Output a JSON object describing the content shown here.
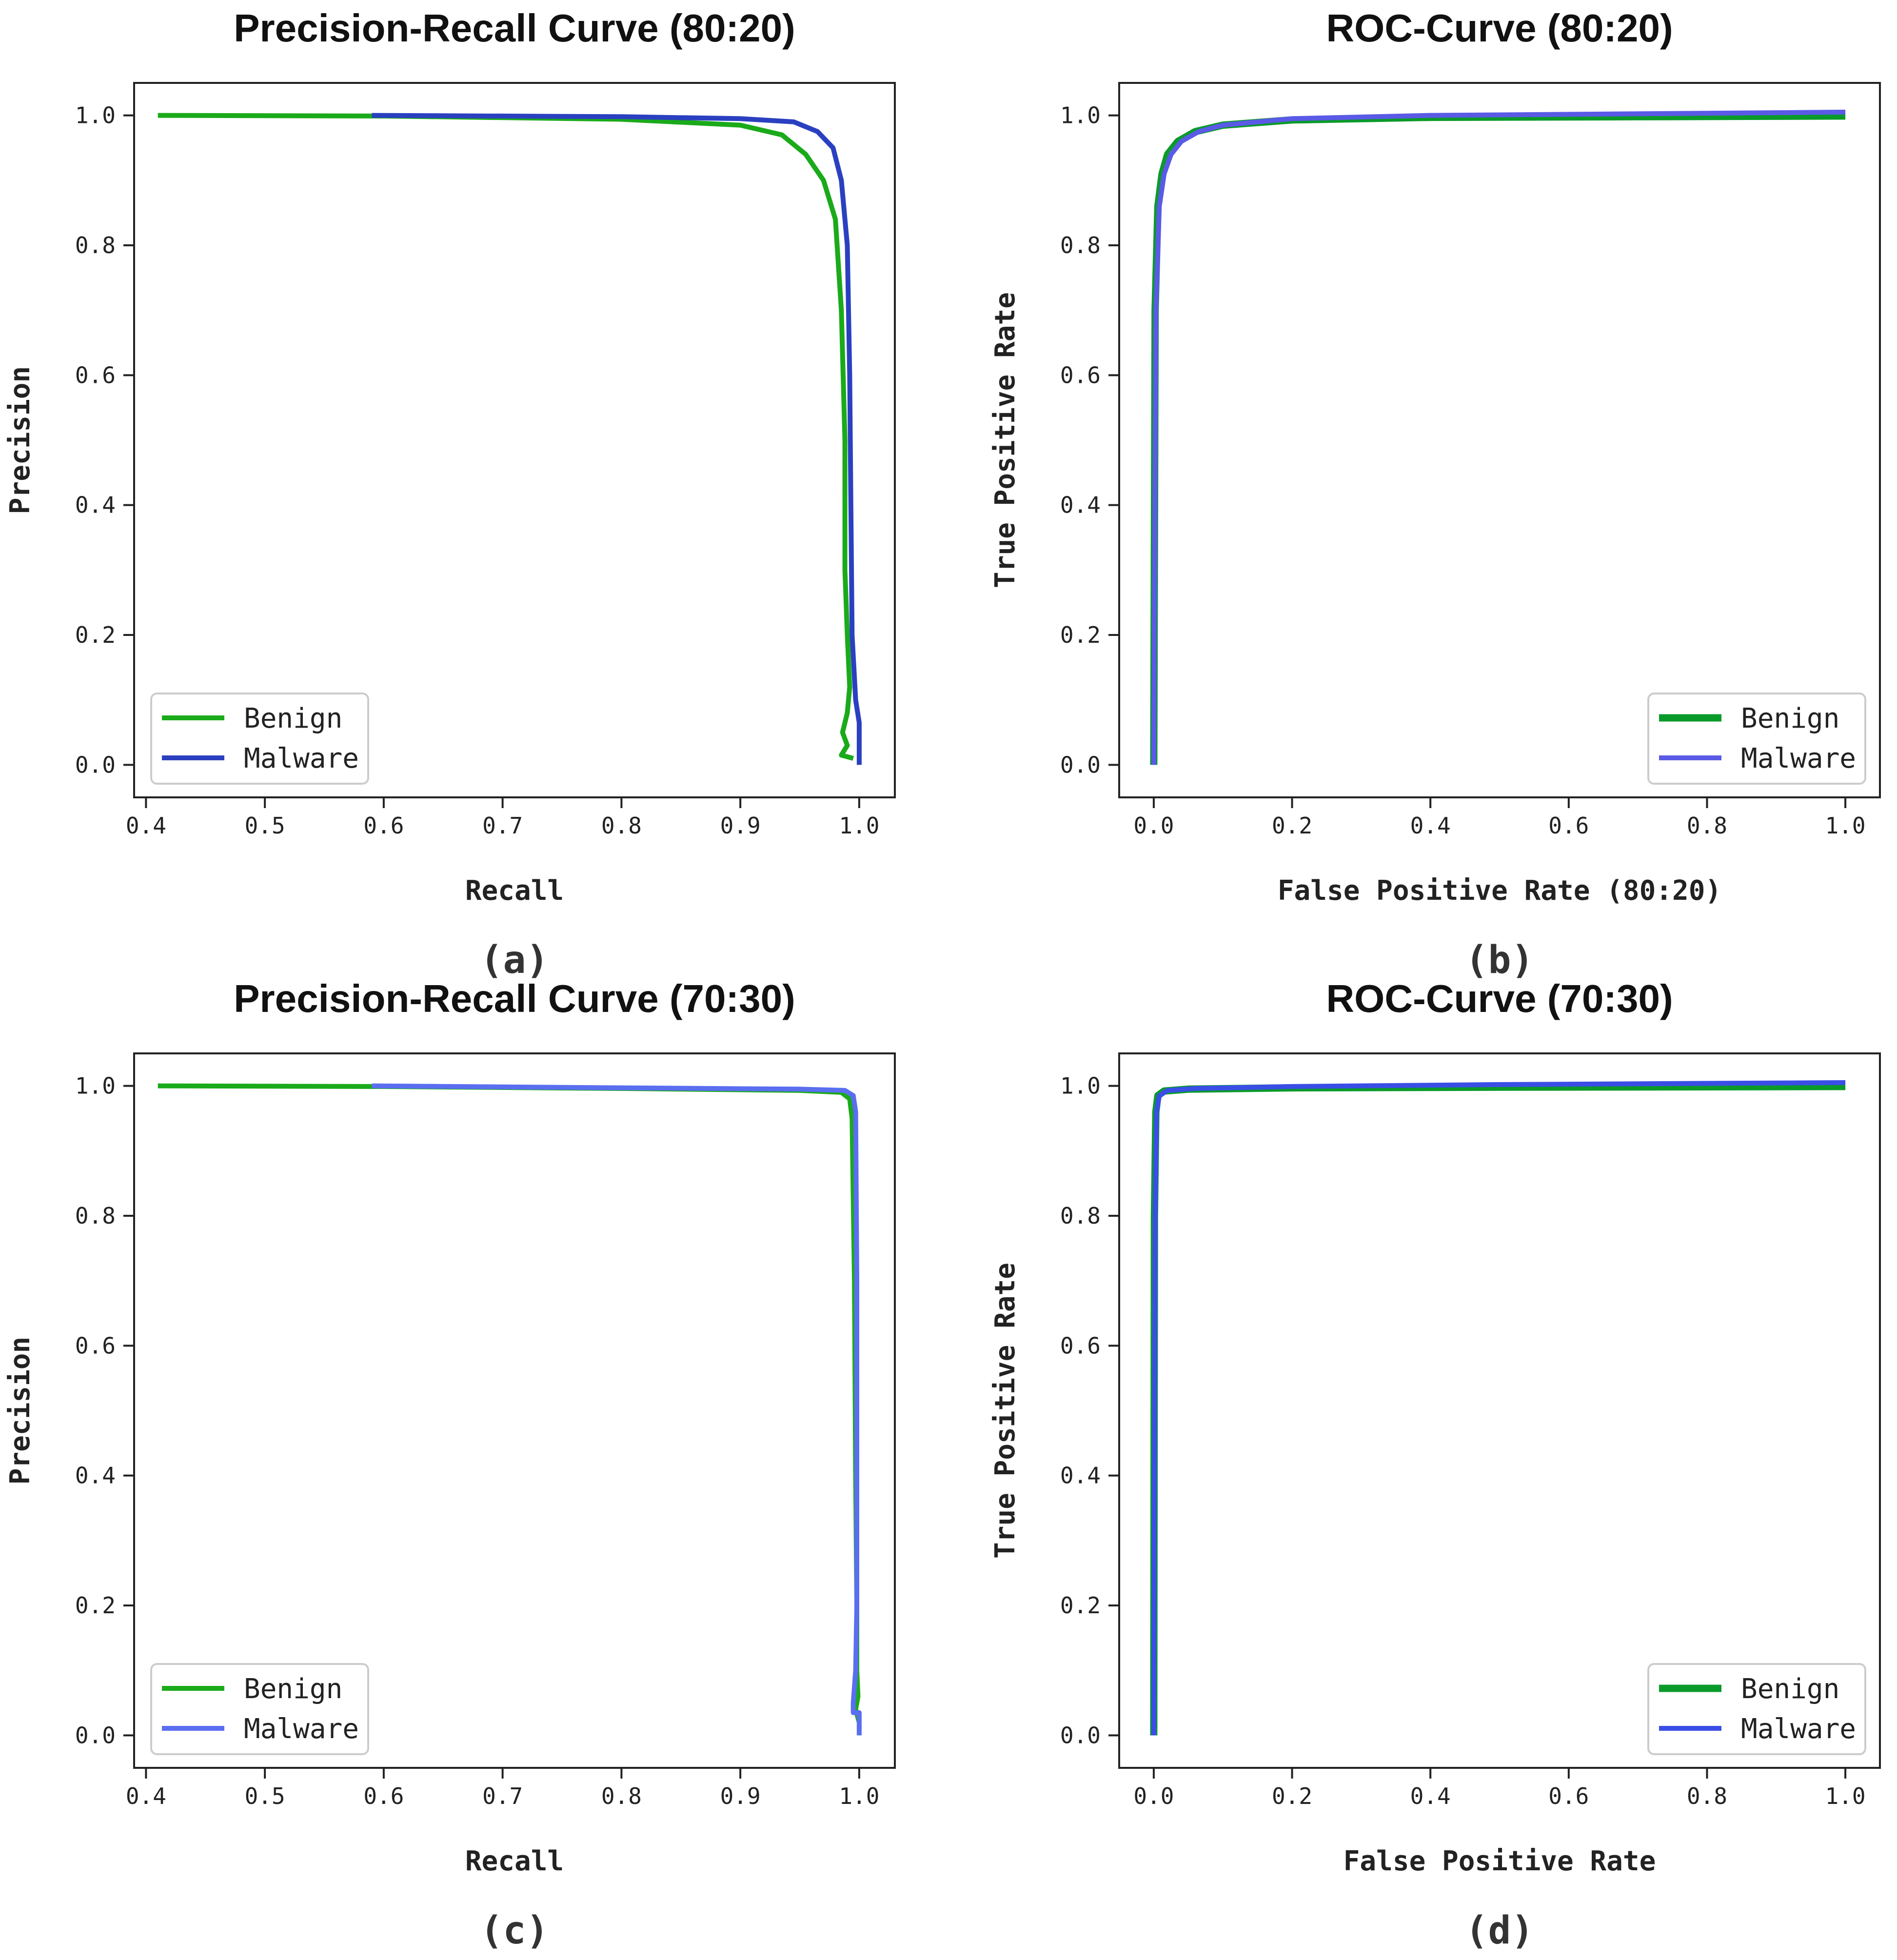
{
  "chart_data": [
    {
      "type": "line",
      "title": "Precision-Recall Curve (80:20)",
      "caption": "(a)",
      "xlabel": "Recall",
      "ylabel": "Precision",
      "xlim": [
        0.39,
        1.03
      ],
      "ylim": [
        -0.05,
        1.05
      ],
      "xticks": [
        0.4,
        0.5,
        0.6,
        0.7,
        0.8,
        0.9,
        1.0
      ],
      "xtick_labels": [
        "0.4",
        "0.5",
        "0.6",
        "0.7",
        "0.8",
        "0.9",
        "1.0"
      ],
      "yticks": [
        0.0,
        0.2,
        0.4,
        0.6,
        0.8,
        1.0
      ],
      "ytick_labels": [
        "0.0",
        "0.2",
        "0.4",
        "0.6",
        "0.8",
        "1.0"
      ],
      "grid": false,
      "legend": {
        "position": "bottom-left"
      },
      "series": [
        {
          "name": "Benign",
          "color": "#1aaa1a",
          "points": [
            [
              0.41,
              1.0
            ],
            [
              0.6,
              0.999
            ],
            [
              0.8,
              0.994
            ],
            [
              0.9,
              0.985
            ],
            [
              0.935,
              0.97
            ],
            [
              0.955,
              0.94
            ],
            [
              0.97,
              0.9
            ],
            [
              0.98,
              0.84
            ],
            [
              0.985,
              0.7
            ],
            [
              0.988,
              0.5
            ],
            [
              0.988,
              0.3
            ],
            [
              0.99,
              0.2
            ],
            [
              0.992,
              0.12
            ],
            [
              0.99,
              0.08
            ],
            [
              0.986,
              0.05
            ],
            [
              0.99,
              0.03
            ],
            [
              0.985,
              0.015
            ],
            [
              0.995,
              0.01
            ]
          ]
        },
        {
          "name": "Malware",
          "color": "#2a40c0",
          "points": [
            [
              0.59,
              1.0
            ],
            [
              0.8,
              0.998
            ],
            [
              0.9,
              0.995
            ],
            [
              0.945,
              0.99
            ],
            [
              0.965,
              0.975
            ],
            [
              0.978,
              0.95
            ],
            [
              0.985,
              0.9
            ],
            [
              0.99,
              0.8
            ],
            [
              0.992,
              0.6
            ],
            [
              0.993,
              0.4
            ],
            [
              0.994,
              0.2
            ],
            [
              0.997,
              0.1
            ],
            [
              1.0,
              0.065
            ],
            [
              1.0,
              0.0
            ]
          ]
        }
      ]
    },
    {
      "type": "line",
      "title": "ROC-Curve (80:20)",
      "caption": "(b)",
      "xlabel": "False Positive Rate (80:20)",
      "ylabel": "True Positive Rate",
      "xlim": [
        -0.05,
        1.05
      ],
      "ylim": [
        -0.05,
        1.05
      ],
      "xticks": [
        0.0,
        0.2,
        0.4,
        0.6,
        0.8,
        1.0
      ],
      "xtick_labels": [
        "0.0",
        "0.2",
        "0.4",
        "0.6",
        "0.8",
        "1.0"
      ],
      "yticks": [
        0.0,
        0.2,
        0.4,
        0.6,
        0.8,
        1.0
      ],
      "ytick_labels": [
        "0.0",
        "0.2",
        "0.4",
        "0.6",
        "0.8",
        "1.0"
      ],
      "grid": false,
      "legend": {
        "position": "bottom-right"
      },
      "series": [
        {
          "name": "Benign",
          "color": "#0a9a2a",
          "points": [
            [
              0.0,
              0.0
            ],
            [
              0.002,
              0.7
            ],
            [
              0.006,
              0.86
            ],
            [
              0.012,
              0.91
            ],
            [
              0.02,
              0.94
            ],
            [
              0.035,
              0.96
            ],
            [
              0.06,
              0.975
            ],
            [
              0.1,
              0.985
            ],
            [
              0.2,
              0.993
            ],
            [
              0.4,
              0.997
            ],
            [
              0.7,
              0.998
            ],
            [
              1.0,
              0.999
            ]
          ]
        },
        {
          "name": "Malware",
          "color": "#5a5ae6",
          "points": [
            [
              0.0,
              0.0
            ],
            [
              0.003,
              0.7
            ],
            [
              0.008,
              0.86
            ],
            [
              0.015,
              0.91
            ],
            [
              0.025,
              0.94
            ],
            [
              0.04,
              0.96
            ],
            [
              0.065,
              0.975
            ],
            [
              0.1,
              0.985
            ],
            [
              0.2,
              0.995
            ],
            [
              0.4,
              1.0
            ],
            [
              1.0,
              1.005
            ]
          ]
        }
      ]
    },
    {
      "type": "line",
      "title": "Precision-Recall Curve (70:30)",
      "caption": "(c)",
      "xlabel": "Recall",
      "ylabel": "Precision",
      "xlim": [
        0.39,
        1.03
      ],
      "ylim": [
        -0.05,
        1.05
      ],
      "xticks": [
        0.4,
        0.5,
        0.6,
        0.7,
        0.8,
        0.9,
        1.0
      ],
      "xtick_labels": [
        "0.4",
        "0.5",
        "0.6",
        "0.7",
        "0.8",
        "0.9",
        "1.0"
      ],
      "yticks": [
        0.0,
        0.2,
        0.4,
        0.6,
        0.8,
        1.0
      ],
      "ytick_labels": [
        "0.0",
        "0.2",
        "0.4",
        "0.6",
        "0.8",
        "1.0"
      ],
      "grid": false,
      "legend": {
        "position": "bottom-left"
      },
      "series": [
        {
          "name": "Benign",
          "color": "#1aaa1a",
          "points": [
            [
              0.41,
              1.0
            ],
            [
              0.6,
              0.999
            ],
            [
              0.8,
              0.996
            ],
            [
              0.95,
              0.993
            ],
            [
              0.985,
              0.99
            ],
            [
              0.992,
              0.98
            ],
            [
              0.994,
              0.95
            ],
            [
              0.996,
              0.7
            ],
            [
              0.997,
              0.4
            ],
            [
              0.998,
              0.2
            ],
            [
              0.998,
              0.1
            ],
            [
              0.999,
              0.06
            ],
            [
              0.997,
              0.04
            ],
            [
              1.0,
              0.02
            ]
          ]
        },
        {
          "name": "Malware",
          "color": "#5a6ef0",
          "points": [
            [
              0.59,
              1.0
            ],
            [
              0.8,
              0.997
            ],
            [
              0.95,
              0.995
            ],
            [
              0.988,
              0.993
            ],
            [
              0.995,
              0.985
            ],
            [
              0.997,
              0.96
            ],
            [
              0.998,
              0.7
            ],
            [
              0.998,
              0.4
            ],
            [
              0.998,
              0.2
            ],
            [
              0.997,
              0.1
            ],
            [
              0.995,
              0.05
            ],
            [
              0.995,
              0.035
            ],
            [
              1.0,
              0.035
            ],
            [
              1.0,
              0.0
            ]
          ]
        }
      ]
    },
    {
      "type": "line",
      "title": "ROC-Curve (70:30)",
      "caption": "(d)",
      "xlabel": "False Positive Rate",
      "ylabel": "True Positive Rate",
      "xlim": [
        -0.05,
        1.05
      ],
      "ylim": [
        -0.05,
        1.05
      ],
      "xticks": [
        0.0,
        0.2,
        0.4,
        0.6,
        0.8,
        1.0
      ],
      "xtick_labels": [
        "0.0",
        "0.2",
        "0.4",
        "0.6",
        "0.8",
        "1.0"
      ],
      "yticks": [
        0.0,
        0.2,
        0.4,
        0.6,
        0.8,
        1.0
      ],
      "ytick_labels": [
        "0.0",
        "0.2",
        "0.4",
        "0.6",
        "0.8",
        "1.0"
      ],
      "grid": false,
      "legend": {
        "position": "bottom-right"
      },
      "series": [
        {
          "name": "Benign",
          "color": "#0a9a2a",
          "points": [
            [
              0.0,
              0.0
            ],
            [
              0.001,
              0.8
            ],
            [
              0.003,
              0.96
            ],
            [
              0.006,
              0.985
            ],
            [
              0.015,
              0.992
            ],
            [
              0.05,
              0.995
            ],
            [
              0.2,
              0.997
            ],
            [
              0.5,
              0.998
            ],
            [
              1.0,
              0.999
            ]
          ]
        },
        {
          "name": "Malware",
          "color": "#3a4ee6",
          "points": [
            [
              0.0,
              0.0
            ],
            [
              0.002,
              0.8
            ],
            [
              0.004,
              0.96
            ],
            [
              0.008,
              0.985
            ],
            [
              0.02,
              0.993
            ],
            [
              0.06,
              0.996
            ],
            [
              0.2,
              0.999
            ],
            [
              0.5,
              1.002
            ],
            [
              1.0,
              1.005
            ]
          ]
        }
      ]
    }
  ]
}
